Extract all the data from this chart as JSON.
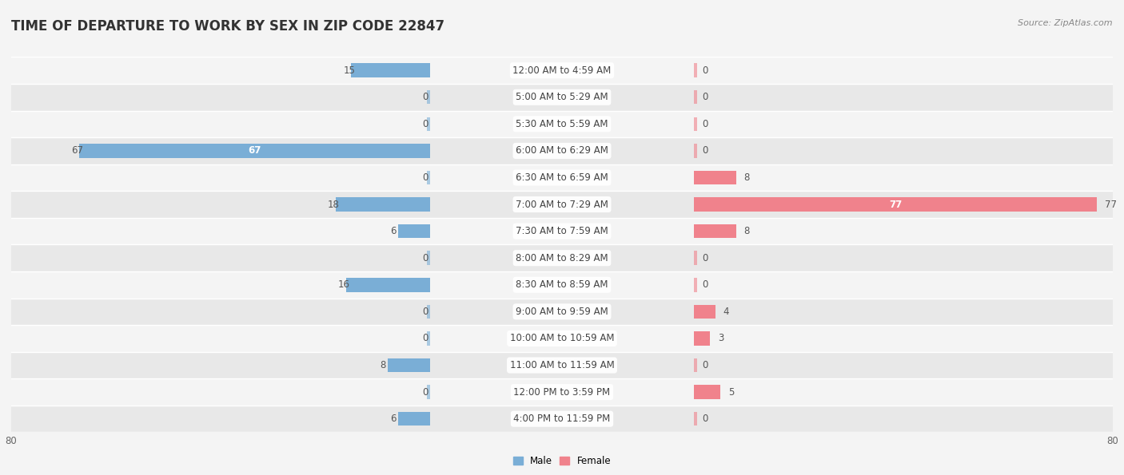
{
  "title": "TIME OF DEPARTURE TO WORK BY SEX IN ZIP CODE 22847",
  "source": "Source: ZipAtlas.com",
  "categories": [
    "12:00 AM to 4:59 AM",
    "5:00 AM to 5:29 AM",
    "5:30 AM to 5:59 AM",
    "6:00 AM to 6:29 AM",
    "6:30 AM to 6:59 AM",
    "7:00 AM to 7:29 AM",
    "7:30 AM to 7:59 AM",
    "8:00 AM to 8:29 AM",
    "8:30 AM to 8:59 AM",
    "9:00 AM to 9:59 AM",
    "10:00 AM to 10:59 AM",
    "11:00 AM to 11:59 AM",
    "12:00 PM to 3:59 PM",
    "4:00 PM to 11:59 PM"
  ],
  "male_values": [
    15,
    0,
    0,
    67,
    0,
    18,
    6,
    0,
    16,
    0,
    0,
    8,
    0,
    6
  ],
  "female_values": [
    0,
    0,
    0,
    0,
    8,
    77,
    8,
    0,
    0,
    4,
    3,
    0,
    5,
    0
  ],
  "male_color": "#7aaed6",
  "female_color": "#f0828c",
  "axis_max": 80,
  "bg_color": "#f4f4f4",
  "row_even_color": "#f4f4f4",
  "row_odd_color": "#e8e8e8",
  "bar_height": 0.52,
  "label_fontsize": 8.5,
  "title_fontsize": 12,
  "value_fontsize": 8.5,
  "source_fontsize": 8
}
